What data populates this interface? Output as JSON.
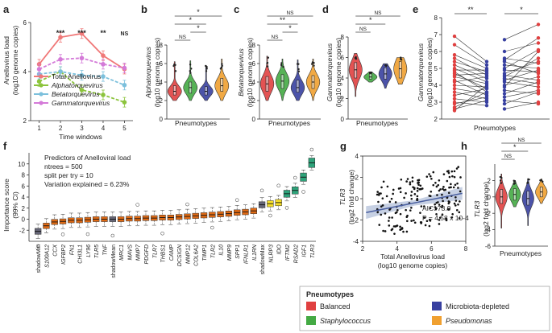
{
  "colors": {
    "total": "#f07878",
    "alpha": "#8cc43c",
    "beta": "#7cc0dc",
    "gamma": "#d47ad8",
    "balanced": "#e04040",
    "staph": "#44aa44",
    "micro": "#3840a0",
    "pseudo": "#f0a030",
    "imp_orange": "#e06a14",
    "imp_grey": "#666677",
    "imp_yellow": "#f5de2a",
    "imp_teal": "#2ea37a"
  },
  "chart_data": [
    {
      "id": "a",
      "panel_label": "a",
      "type": "line",
      "xlabel": "Time windows",
      "ylabel_line1": "Anellovirus load",
      "ylabel_line2": "(log10 genome copies)",
      "x": [
        1,
        2,
        3,
        4,
        5
      ],
      "xlim": [
        0.6,
        5.4
      ],
      "ylim": [
        2,
        6
      ],
      "yticks": [
        2,
        4,
        6
      ],
      "series": [
        {
          "name": "Total Anellovirus",
          "color_key": "total",
          "values": [
            4.3,
            5.4,
            5.55,
            4.65,
            4.1
          ]
        },
        {
          "name": "Alphatorquevirus",
          "color_key": "alpha",
          "values": [
            3.6,
            4.0,
            3.25,
            3.05,
            2.75
          ]
        },
        {
          "name": "Betatorquevirus",
          "color_key": "beta",
          "values": [
            3.9,
            4.0,
            3.85,
            3.8,
            3.45
          ]
        },
        {
          "name": "Gammatorquevirus",
          "color_key": "gamma",
          "values": [
            4.1,
            4.5,
            4.55,
            4.3,
            4.15
          ]
        }
      ],
      "annotations": [
        {
          "x": 2,
          "text": "***"
        },
        {
          "x": 3,
          "text": "***"
        },
        {
          "x": 4,
          "text": "**"
        },
        {
          "x": 5,
          "text": "NS"
        }
      ]
    },
    {
      "id": "b",
      "panel_label": "b",
      "type": "violin",
      "ylabel_line1": "Alphatorquevirus",
      "ylabel_line2": "(log10 genome copies)",
      "xlabel": "Pneumotypes",
      "ylim": [
        0,
        8
      ],
      "yticks": [
        0,
        2,
        4,
        6,
        8
      ],
      "groups": [
        {
          "group": "Balanced",
          "median": 3.0,
          "q1": 2.6,
          "q3": 3.6,
          "min": 2.0,
          "max": 6.2
        },
        {
          "group": "Staphylococcus",
          "median": 3.4,
          "q1": 2.8,
          "q3": 4.0,
          "min": 2.0,
          "max": 6.3
        },
        {
          "group": "Microbiota-depleted",
          "median": 3.0,
          "q1": 2.6,
          "q3": 3.5,
          "min": 2.0,
          "max": 5.8
        },
        {
          "group": "Pseudomonas",
          "median": 3.6,
          "q1": 3.0,
          "q3": 4.4,
          "min": 2.0,
          "max": 6.5
        }
      ],
      "comparisons": [
        {
          "a": 0,
          "b": 1,
          "text": "NS"
        },
        {
          "a": 1,
          "b": 2,
          "text": "*"
        },
        {
          "a": 0,
          "b": 2,
          "text": "*"
        },
        {
          "a": 0,
          "b": 3,
          "text": "*"
        }
      ]
    },
    {
      "id": "c",
      "panel_label": "c",
      "type": "violin",
      "ylabel_line1": "Betatorquevirus",
      "ylabel_line2": "(log10 genome copies)",
      "xlabel": "Pneumotypes",
      "ylim": [
        0,
        8
      ],
      "yticks": [
        0,
        2,
        4,
        6,
        8
      ],
      "groups": [
        {
          "group": "Balanced",
          "median": 3.8,
          "q1": 3.0,
          "q3": 4.6,
          "min": 2.0,
          "max": 6.8
        },
        {
          "group": "Staphylococcus",
          "median": 4.1,
          "q1": 3.3,
          "q3": 4.8,
          "min": 2.0,
          "max": 6.5
        },
        {
          "group": "Microbiota-depleted",
          "median": 3.4,
          "q1": 2.9,
          "q3": 4.2,
          "min": 2.0,
          "max": 6.4
        },
        {
          "group": "Pseudomonas",
          "median": 4.0,
          "q1": 3.3,
          "q3": 4.7,
          "min": 2.0,
          "max": 6.5
        }
      ],
      "comparisons": [
        {
          "a": 0,
          "b": 1,
          "text": "NS"
        },
        {
          "a": 1,
          "b": 2,
          "text": "*"
        },
        {
          "a": 0,
          "b": 2,
          "text": "**"
        },
        {
          "a": 0,
          "b": 3,
          "text": "NS"
        }
      ]
    },
    {
      "id": "d",
      "panel_label": "d",
      "type": "violin",
      "ylabel_line1": "Gammatorquevirus",
      "ylabel_line2": "(log10 genome copies)",
      "xlabel": "Pneumotypes",
      "ylim": [
        0,
        8
      ],
      "yticks": [
        0,
        2,
        4,
        6,
        8
      ],
      "groups": [
        {
          "group": "Balanced",
          "median": 4.8,
          "q1": 4.0,
          "q3": 5.5,
          "min": 2.2,
          "max": 6.4
        },
        {
          "group": "Staphylococcus",
          "median": 4.1,
          "q1": 3.9,
          "q3": 4.4,
          "min": 3.6,
          "max": 4.6
        },
        {
          "group": "Microbiota-depleted",
          "median": 4.4,
          "q1": 3.9,
          "q3": 5.0,
          "min": 3.0,
          "max": 5.4
        },
        {
          "group": "Pseudomonas",
          "median": 4.9,
          "q1": 4.0,
          "q3": 5.6,
          "min": 3.4,
          "max": 6.0
        }
      ],
      "comparisons": [
        {
          "a": 0,
          "b": 1,
          "text": "NS"
        },
        {
          "a": 0,
          "b": 2,
          "text": "*"
        },
        {
          "a": 0,
          "b": 3,
          "text": "NS"
        }
      ]
    },
    {
      "id": "e",
      "panel_label": "e",
      "type": "paired_line",
      "ylabel_line1": "Gammatorquevirus",
      "ylabel_line2": "(log10 genome copies)",
      "xlabel": "Pneumotypes",
      "ylim": [
        2,
        8
      ],
      "yticks": [
        2,
        3,
        4,
        5,
        6,
        7,
        8
      ],
      "sig_left": "**",
      "sig_right": "*",
      "pairs_left": [
        [
          6.9,
          5.4
        ],
        [
          6.4,
          5.2
        ],
        [
          5.8,
          5.0
        ],
        [
          5.6,
          4.6
        ],
        [
          5.4,
          4.8
        ],
        [
          5.2,
          4.4
        ],
        [
          5.0,
          4.2
        ],
        [
          4.9,
          4.9
        ],
        [
          4.8,
          3.6
        ],
        [
          4.7,
          3.8
        ],
        [
          4.6,
          4.7
        ],
        [
          4.5,
          4.1
        ],
        [
          4.3,
          3.4
        ],
        [
          4.2,
          4.5
        ],
        [
          4.0,
          3.9
        ],
        [
          3.8,
          3.5
        ],
        [
          3.6,
          3.2
        ],
        [
          3.4,
          3.8
        ],
        [
          3.2,
          3.0
        ],
        [
          3.0,
          2.8
        ],
        [
          2.9,
          3.3
        ],
        [
          2.7,
          3.6
        ],
        [
          2.6,
          3.1
        ],
        [
          2.5,
          4.0
        ]
      ],
      "pairs_right": [
        [
          6.7,
          7.6
        ],
        [
          6.0,
          6.5
        ],
        [
          5.6,
          5.3
        ],
        [
          5.5,
          6.8
        ],
        [
          5.4,
          4.7
        ],
        [
          5.2,
          5.0
        ],
        [
          5.0,
          6.1
        ],
        [
          4.9,
          4.8
        ],
        [
          4.7,
          5.4
        ],
        [
          4.6,
          4.3
        ],
        [
          4.5,
          5.6
        ],
        [
          4.4,
          4.1
        ],
        [
          4.3,
          4.9
        ],
        [
          4.2,
          3.9
        ],
        [
          4.0,
          4.5
        ],
        [
          3.9,
          6.0
        ],
        [
          3.7,
          3.5
        ],
        [
          3.5,
          4.2
        ],
        [
          3.3,
          3.7
        ],
        [
          3.1,
          2.9
        ],
        [
          2.9,
          3.6
        ],
        [
          2.6,
          3.0
        ]
      ]
    },
    {
      "id": "f",
      "panel_label": "f",
      "type": "box",
      "ylabel_line1": "Importance score",
      "ylabel_line2": "(99% CI)",
      "ylim": [
        -4,
        12
      ],
      "yticks": [
        -2,
        0,
        2,
        4,
        6,
        8,
        10
      ],
      "info": [
        "Predictors of Anelloviral load",
        "ntrees = 500",
        "split per try = 10",
        "Variation explained = 6.23%"
      ],
      "categories": [
        "shadowMin",
        "S100A12",
        "CCX",
        "IGFBP2",
        "FN1",
        "CHI3L1",
        "LY96",
        "TLR5",
        "TNF",
        "shadowMean",
        "MRC1",
        "MAVS",
        "MMP7",
        "PDGFD",
        "TLR7",
        "THBS1",
        "CAMP",
        "DCSIGN",
        "MMP12",
        "COL6A2",
        "TIMP1",
        "TLR2",
        "IL10",
        "MMP9",
        "SPP1",
        "IFNLR1",
        "IL1RN",
        "shadowMax",
        "NLRP3",
        "IDO",
        "IFTM2",
        "RSAD2",
        "IGF1",
        "TLR3"
      ],
      "medians": [
        -2.2,
        -1.2,
        -0.5,
        -0.4,
        -0.2,
        -0.2,
        -0.1,
        0.0,
        0.0,
        0.0,
        0.0,
        0.1,
        0.1,
        0.2,
        0.2,
        0.3,
        0.3,
        0.4,
        0.5,
        0.6,
        0.7,
        0.8,
        0.9,
        1.0,
        1.2,
        1.3,
        1.5,
        2.6,
        2.8,
        3.0,
        4.6,
        5.2,
        7.6,
        10.2
      ],
      "color_keys": [
        "imp_grey",
        "imp_orange",
        "imp_orange",
        "imp_orange",
        "imp_orange",
        "imp_orange",
        "imp_orange",
        "imp_orange",
        "imp_orange",
        "imp_grey",
        "imp_orange",
        "imp_orange",
        "imp_orange",
        "imp_orange",
        "imp_orange",
        "imp_orange",
        "imp_orange",
        "imp_orange",
        "imp_orange",
        "imp_orange",
        "imp_orange",
        "imp_orange",
        "imp_orange",
        "imp_orange",
        "imp_orange",
        "imp_orange",
        "imp_orange",
        "imp_grey",
        "imp_yellow",
        "imp_yellow",
        "imp_teal",
        "imp_teal",
        "imp_teal",
        "imp_teal"
      ]
    },
    {
      "id": "g",
      "panel_label": "g",
      "type": "scatter",
      "ylabel_line1": "TLR3",
      "ylabel_line2": "(log2 fold change)",
      "xlabel_line1": "Total Anellovirus load",
      "xlabel_line2": "(log10 genome copies)",
      "xlim": [
        2,
        8
      ],
      "ylim": [
        -4,
        4
      ],
      "xticks": [
        2,
        4,
        6,
        8
      ],
      "yticks": [
        -4,
        -2,
        0,
        2,
        4
      ],
      "fit": {
        "x0": 2.2,
        "y0": -1.3,
        "x1": 7.8,
        "y1": 0.5
      },
      "stats_line1": "AIC: 73.9",
      "stats_line2": "P = 4.58 x 10-4"
    },
    {
      "id": "h",
      "panel_label": "h",
      "type": "violin",
      "ylabel_line1": "TLR3",
      "ylabel_line2": "(log2 fold change)",
      "xlabel": "Pneumotypes",
      "ylim": [
        -6,
        4
      ],
      "yticks": [
        -6,
        -4,
        -2,
        0,
        2
      ],
      "groups": [
        {
          "group": "Balanced",
          "median": 0.0,
          "q1": -0.8,
          "q3": 0.9,
          "min": -3.8,
          "max": 2.8
        },
        {
          "group": "Staphylococcus",
          "median": 0.3,
          "q1": -0.4,
          "q3": 1.0,
          "min": -1.2,
          "max": 2.0
        },
        {
          "group": "Microbiota-depleted",
          "median": -0.2,
          "q1": -1.0,
          "q3": 0.7,
          "min": -3.5,
          "max": 2.2
        },
        {
          "group": "Pseudomonas",
          "median": 0.6,
          "q1": 0.0,
          "q3": 1.2,
          "min": -0.8,
          "max": 2.2
        }
      ],
      "comparisons": [
        {
          "a": 0,
          "b": 1,
          "text": "NS"
        },
        {
          "a": 0,
          "b": 2,
          "text": "*"
        },
        {
          "a": 0,
          "b": 3,
          "text": "NS"
        }
      ]
    }
  ],
  "legend": {
    "title": "Pneumotypes",
    "items": [
      {
        "label": "Balanced",
        "color_key": "balanced",
        "italic": false
      },
      {
        "label": "Microbiota-depleted",
        "color_key": "micro",
        "italic": false
      },
      {
        "label": "Staphylococcus",
        "color_key": "staph",
        "italic": true
      },
      {
        "label": "Pseudomonas",
        "color_key": "pseudo",
        "italic": true
      }
    ]
  }
}
